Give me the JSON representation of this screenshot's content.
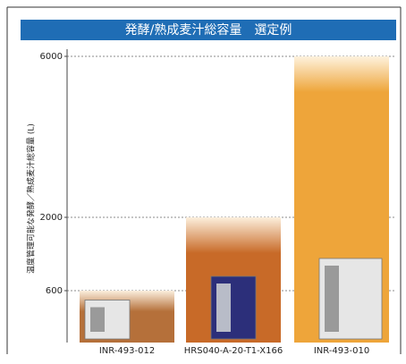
{
  "chart_data": {
    "type": "bar",
    "title": "発酵/熟成麦汁総容量　選定例",
    "y_label": "温度管理可能な発酵／熟成麦汁総容量 (L)",
    "categories": [
      "INR-493-012",
      "HRS040-A-20-T1-X166",
      "INR-493-010"
    ],
    "values": [
      600,
      2000,
      6000
    ],
    "colors": [
      "#b5703a",
      "#c86a28",
      "#eea53a"
    ],
    "ylim": [
      0,
      6000
    ],
    "yticks": [
      600,
      2000,
      6000
    ],
    "grid": true
  }
}
